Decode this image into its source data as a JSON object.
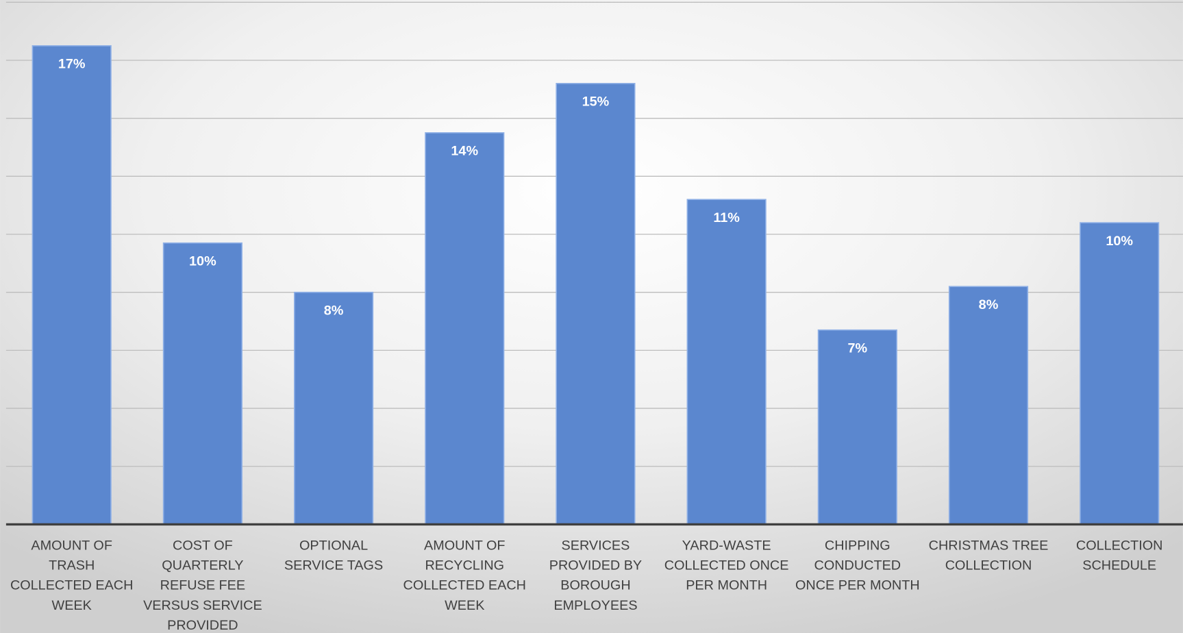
{
  "chart_data": {
    "type": "bar",
    "categories": [
      "AMOUNT OF TRASH COLLECTED EACH WEEK",
      "COST OF QUARTERLY REFUSE FEE VERSUS SERVICE PROVIDED",
      "OPTIONAL SERVICE TAGS",
      "AMOUNT OF RECYCLING COLLECTED EACH WEEK",
      "SERVICES PROVIDED BY BOROUGH EMPLOYEES",
      "YARD-WASTE COLLECTED ONCE PER MONTH",
      "CHIPPING CONDUCTED ONCE PER MONTH",
      "CHRISTMAS TREE COLLECTION",
      "COLLECTION SCHEDULE"
    ],
    "values": [
      16.5,
      9.7,
      8,
      13.5,
      15.2,
      11.2,
      6.7,
      8.2,
      10.4
    ],
    "value_labels": [
      "17%",
      "10%",
      "8%",
      "14%",
      "15%",
      "11%",
      "7%",
      "8%",
      "10%"
    ],
    "color": "#5b87cf",
    "ylim": [
      0,
      18
    ],
    "yticks": [
      0,
      2,
      4,
      6,
      8,
      10,
      12,
      14,
      16,
      18
    ],
    "grid": true
  }
}
